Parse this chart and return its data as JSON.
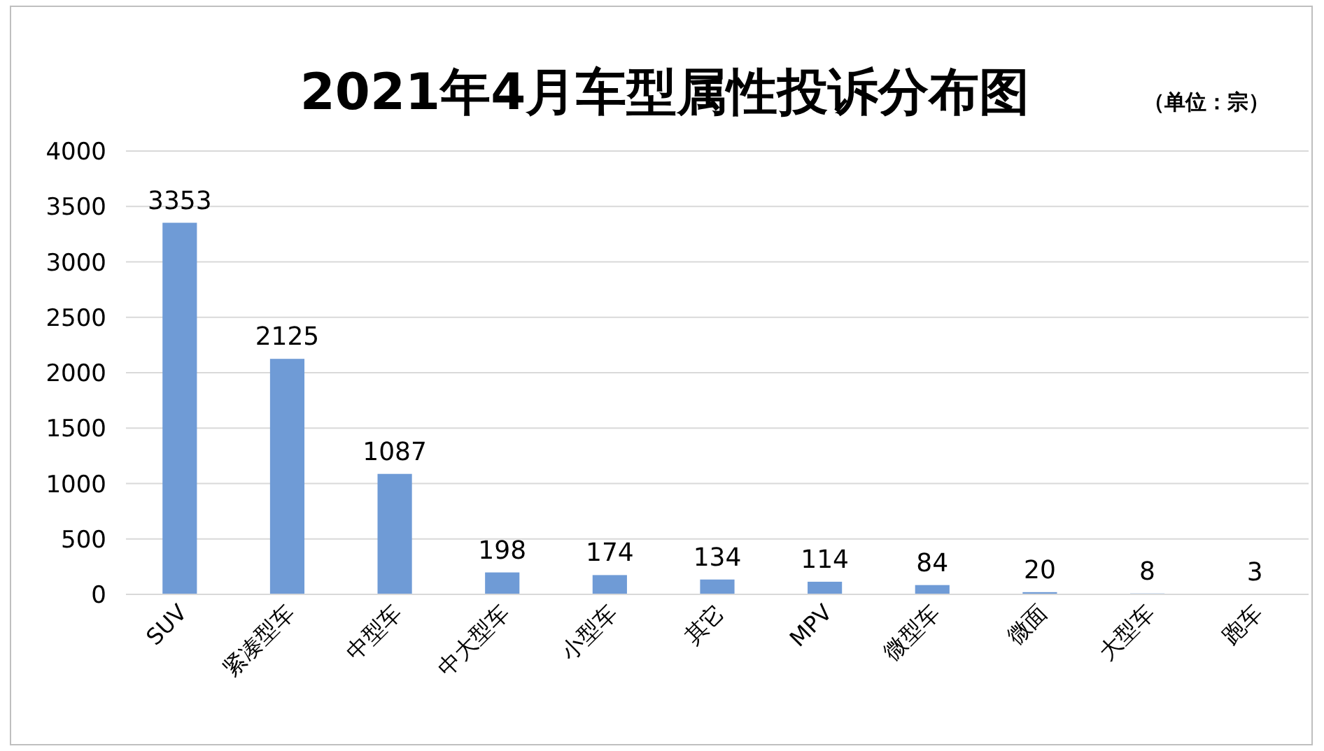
{
  "chart_data": {
    "type": "bar",
    "title": "2021年4月车型属性投诉分布图",
    "subtitle": "（单位：宗）",
    "categories": [
      "SUV",
      "紧凑型车",
      "中型车",
      "中大型车",
      "小型车",
      "其它",
      "MPV",
      "微型车",
      "微面",
      "大型车",
      "跑车"
    ],
    "values": [
      3353,
      2125,
      1087,
      198,
      174,
      134,
      114,
      84,
      20,
      8,
      3
    ],
    "color": "#6f9bd6",
    "ylim": [
      0,
      4000
    ],
    "yticks": [
      0,
      500,
      1000,
      1500,
      2000,
      2500,
      3000,
      3500,
      4000
    ],
    "grid": "y",
    "data_labels": true
  }
}
